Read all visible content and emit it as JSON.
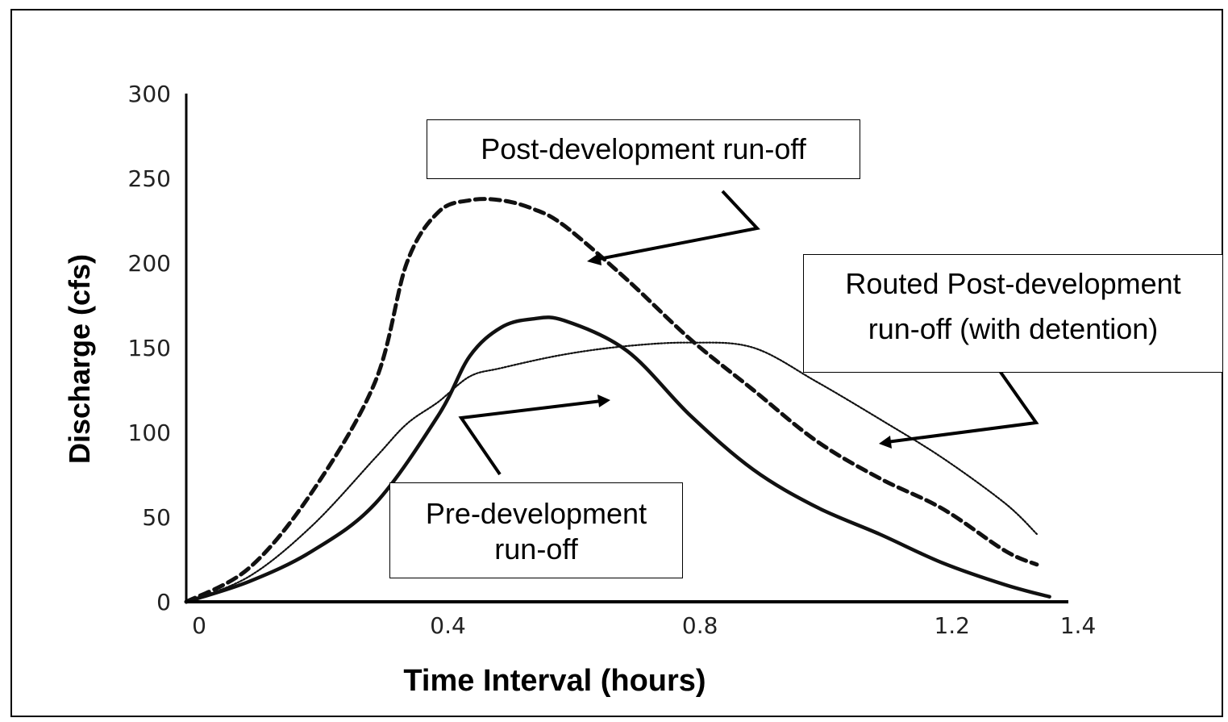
{
  "chart_data": {
    "type": "line",
    "xlabel": "Time Interval (hours)",
    "ylabel": "Discharge (cfs)",
    "xlim": [
      0,
      1.4
    ],
    "ylim": [
      0,
      300
    ],
    "x_ticks": [
      "0",
      "0.4",
      "0.8",
      "1.2",
      "1.4"
    ],
    "y_ticks": [
      "0",
      "50",
      "100",
      "150",
      "200",
      "250",
      "300"
    ],
    "grid": false,
    "series": [
      {
        "name": "Post-development run-off",
        "style": "dashed",
        "x": [
          0,
          0.1,
          0.2,
          0.3,
          0.35,
          0.4,
          0.45,
          0.5,
          0.55,
          0.6,
          0.7,
          0.8,
          0.9,
          1.0,
          1.1,
          1.2,
          1.3,
          1.35
        ],
        "y": [
          0,
          20,
          65,
          130,
          200,
          230,
          237,
          237,
          232,
          222,
          190,
          155,
          125,
          95,
          73,
          55,
          30,
          22
        ]
      },
      {
        "name": "Pre-development run-off",
        "style": "solid",
        "x": [
          0,
          0.1,
          0.2,
          0.3,
          0.4,
          0.45,
          0.5,
          0.55,
          0.6,
          0.7,
          0.8,
          0.9,
          1.0,
          1.1,
          1.2,
          1.3,
          1.37
        ],
        "y": [
          0,
          12,
          30,
          58,
          110,
          145,
          162,
          167,
          166,
          148,
          110,
          78,
          56,
          40,
          23,
          10,
          3
        ]
      },
      {
        "name": "Routed Post-development run-off (with detention)",
        "style": "dotted",
        "x": [
          0,
          0.1,
          0.2,
          0.3,
          0.35,
          0.4,
          0.45,
          0.5,
          0.6,
          0.7,
          0.8,
          0.9,
          1.0,
          1.1,
          1.2,
          1.3,
          1.35
        ],
        "y": [
          0,
          15,
          45,
          85,
          105,
          118,
          133,
          138,
          146,
          151,
          153,
          150,
          130,
          108,
          85,
          58,
          40
        ]
      }
    ],
    "annotations": {
      "post": [
        "Post-development run-off"
      ],
      "routed": [
        "Routed Post-development",
        "run-off (with detention)"
      ],
      "pre": [
        "Pre-development",
        "run-off"
      ]
    },
    "colors": {
      "line": "#111111",
      "axis": "#000000"
    }
  }
}
